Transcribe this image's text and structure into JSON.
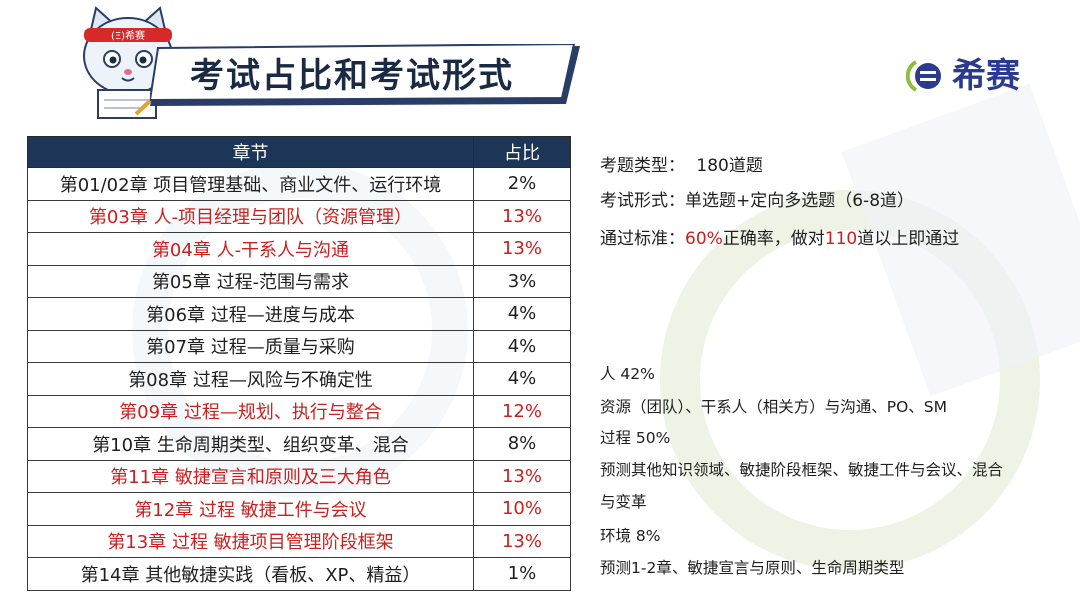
{
  "header": {
    "title": "考试占比和考试形式",
    "logo_text": "希赛",
    "mascot_headband": "(Ξ)希赛"
  },
  "table": {
    "headers": [
      "章节",
      "占比"
    ],
    "rows": [
      {
        "chapter": "第01/02章 项目管理基础、商业文件、运行环境",
        "ratio": "2%",
        "highlight": false
      },
      {
        "chapter": "第03章 人-项目经理与团队（资源管理）",
        "ratio": "13%",
        "highlight": true
      },
      {
        "chapter": "第04章 人-干系人与沟通",
        "ratio": "13%",
        "highlight": true
      },
      {
        "chapter": "第05章 过程-范围与需求",
        "ratio": "3%",
        "highlight": false
      },
      {
        "chapter": "第06章 过程—进度与成本",
        "ratio": "4%",
        "highlight": false
      },
      {
        "chapter": "第07章 过程—质量与采购",
        "ratio": "4%",
        "highlight": false
      },
      {
        "chapter": "第08章 过程—风险与不确定性",
        "ratio": "4%",
        "highlight": false
      },
      {
        "chapter": "第09章 过程—规划、执行与整合",
        "ratio": "12%",
        "highlight": true
      },
      {
        "chapter": "第10章 生命周期类型、组织变革、混合",
        "ratio": "8%",
        "highlight": false
      },
      {
        "chapter": "第11章 敏捷宣言和原则及三大角色",
        "ratio": "13%",
        "highlight": true
      },
      {
        "chapter": "第12章 过程 敏捷工件与会议",
        "ratio": "10%",
        "highlight": true
      },
      {
        "chapter": "第13章 过程 敏捷项目管理阶段框架",
        "ratio": "13%",
        "highlight": true
      },
      {
        "chapter": "第14章 其他敏捷实践（看板、XP、精益）",
        "ratio": "1%",
        "highlight": false
      }
    ]
  },
  "exam_info": {
    "type_label": "考题类型：",
    "type_value": "180道题",
    "form_label": "考试形式：",
    "form_value": "单选题+定向多选题（6-8道）",
    "pass_label": "通过标准：",
    "pass_rate": "60%",
    "pass_mid": "正确率，做对",
    "pass_count": "110",
    "pass_tail": "道以上即通过"
  },
  "domains": {
    "people_label": "人 42%",
    "people_desc": "资源（团队）、干系人（相关方）与沟通、PO、SM",
    "process_label": "过程 50%",
    "process_desc_1": "预测其他知识领域、敏捷阶段框架、敏捷工件与会议、混合",
    "process_desc_2": "与变革",
    "env_label": "环境 8%",
    "env_desc": "预测1-2章、敏捷宣言与原则、生命周期类型"
  },
  "colors": {
    "table_header": "#1d3557",
    "highlight_red": "#c8211f",
    "title_dark": "#1a2a44",
    "logo_blue": "#2a3b8f"
  }
}
